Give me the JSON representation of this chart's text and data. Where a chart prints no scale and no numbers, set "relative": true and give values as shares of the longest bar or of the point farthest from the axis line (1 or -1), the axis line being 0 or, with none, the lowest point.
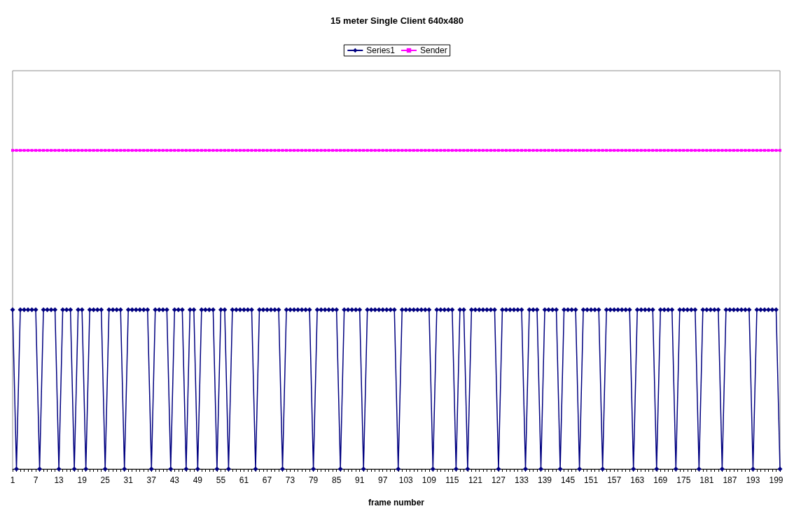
{
  "chart_data": {
    "type": "line",
    "title": "15 meter Single Client 640x480",
    "xlabel": "frame number",
    "relative": true,
    "legend": "top",
    "grid": false,
    "categories": [
      "1",
      null,
      null,
      null,
      null,
      null,
      "7",
      null,
      null,
      null,
      null,
      null,
      "13",
      null,
      null,
      null,
      null,
      null,
      "19",
      null,
      null,
      null,
      null,
      null,
      "25",
      null,
      null,
      null,
      null,
      null,
      "31",
      null,
      null,
      null,
      null,
      null,
      "37",
      null,
      null,
      null,
      null,
      null,
      "43",
      null,
      null,
      null,
      null,
      null,
      "49",
      null,
      null,
      null,
      null,
      null,
      "55",
      null,
      null,
      null,
      null,
      null,
      "61",
      null,
      null,
      null,
      null,
      null,
      "67",
      null,
      null,
      null,
      null,
      null,
      "73",
      null,
      null,
      null,
      null,
      null,
      "79",
      null,
      null,
      null,
      null,
      null,
      "85",
      null,
      null,
      null,
      null,
      null,
      "91",
      null,
      null,
      null,
      null,
      null,
      "97",
      null,
      null,
      null,
      null,
      null,
      "103",
      null,
      null,
      null,
      null,
      null,
      "109",
      null,
      null,
      null,
      null,
      null,
      "115",
      null,
      null,
      null,
      null,
      null,
      "121",
      null,
      null,
      null,
      null,
      null,
      "127",
      null,
      null,
      null,
      null,
      null,
      "133",
      null,
      null,
      null,
      null,
      null,
      "139",
      null,
      null,
      null,
      null,
      null,
      "145",
      null,
      null,
      null,
      null,
      null,
      "151",
      null,
      null,
      null,
      null,
      null,
      "157",
      null,
      null,
      null,
      null,
      null,
      "163",
      null,
      null,
      null,
      null,
      null,
      "169",
      null,
      null,
      null,
      null,
      null,
      "175",
      null,
      null,
      null,
      null,
      null,
      "181",
      null,
      null,
      null,
      null,
      null,
      "187",
      null,
      null,
      null,
      null,
      null,
      "193",
      null,
      null,
      null,
      null,
      null,
      "199",
      null
    ],
    "series": [
      {
        "name": "Series1",
        "color": "#000080",
        "marker": "diamond",
        "values": [
          0.5,
          0,
          0.5,
          0.5,
          0.5,
          0.5,
          0.5,
          0,
          0.5,
          0.5,
          0.5,
          0.5,
          0,
          0.5,
          0.5,
          0.5,
          0,
          0.5,
          0.5,
          0,
          0.5,
          0.5,
          0.5,
          0.5,
          0,
          0.5,
          0.5,
          0.5,
          0.5,
          0,
          0.5,
          0.5,
          0.5,
          0.5,
          0.5,
          0.5,
          0,
          0.5,
          0.5,
          0.5,
          0.5,
          0,
          0.5,
          0.5,
          0.5,
          0,
          0.5,
          0.5,
          0,
          0.5,
          0.5,
          0.5,
          0.5,
          0,
          0.5,
          0.5,
          0,
          0.5,
          0.5,
          0.5,
          0.5,
          0.5,
          0.5,
          0,
          0.5,
          0.5,
          0.5,
          0.5,
          0.5,
          0.5,
          0,
          0.5,
          0.5,
          0.5,
          0.5,
          0.5,
          0.5,
          0.5,
          0,
          0.5,
          0.5,
          0.5,
          0.5,
          0.5,
          0.5,
          0,
          0.5,
          0.5,
          0.5,
          0.5,
          0.5,
          0,
          0.5,
          0.5,
          0.5,
          0.5,
          0.5,
          0.5,
          0.5,
          0.5,
          0,
          0.5,
          0.5,
          0.5,
          0.5,
          0.5,
          0.5,
          0.5,
          0.5,
          0,
          0.5,
          0.5,
          0.5,
          0.5,
          0.5,
          0,
          0.5,
          0.5,
          0,
          0.5,
          0.5,
          0.5,
          0.5,
          0.5,
          0.5,
          0.5,
          0,
          0.5,
          0.5,
          0.5,
          0.5,
          0.5,
          0.5,
          0,
          0.5,
          0.5,
          0.5,
          0,
          0.5,
          0.5,
          0.5,
          0.5,
          0,
          0.5,
          0.5,
          0.5,
          0.5,
          0,
          0.5,
          0.5,
          0.5,
          0.5,
          0.5,
          0,
          0.5,
          0.5,
          0.5,
          0.5,
          0.5,
          0.5,
          0.5,
          0,
          0.5,
          0.5,
          0.5,
          0.5,
          0.5,
          0,
          0.5,
          0.5,
          0.5,
          0.5,
          0,
          0.5,
          0.5,
          0.5,
          0.5,
          0.5,
          0,
          0.5,
          0.5,
          0.5,
          0.5,
          0.5,
          0,
          0.5,
          0.5,
          0.5,
          0.5,
          0.5,
          0.5,
          0.5,
          0,
          0.5,
          0.5,
          0.5,
          0.5,
          0.5,
          0.5,
          0
        ]
      },
      {
        "name": "Sender",
        "color": "#ff00ff",
        "marker": "square",
        "values": [
          1,
          1,
          1,
          1,
          1,
          1,
          1,
          1,
          1,
          1,
          1,
          1,
          1,
          1,
          1,
          1,
          1,
          1,
          1,
          1,
          1,
          1,
          1,
          1,
          1,
          1,
          1,
          1,
          1,
          1,
          1,
          1,
          1,
          1,
          1,
          1,
          1,
          1,
          1,
          1,
          1,
          1,
          1,
          1,
          1,
          1,
          1,
          1,
          1,
          1,
          1,
          1,
          1,
          1,
          1,
          1,
          1,
          1,
          1,
          1,
          1,
          1,
          1,
          1,
          1,
          1,
          1,
          1,
          1,
          1,
          1,
          1,
          1,
          1,
          1,
          1,
          1,
          1,
          1,
          1,
          1,
          1,
          1,
          1,
          1,
          1,
          1,
          1,
          1,
          1,
          1,
          1,
          1,
          1,
          1,
          1,
          1,
          1,
          1,
          1,
          1,
          1,
          1,
          1,
          1,
          1,
          1,
          1,
          1,
          1,
          1,
          1,
          1,
          1,
          1,
          1,
          1,
          1,
          1,
          1,
          1,
          1,
          1,
          1,
          1,
          1,
          1,
          1,
          1,
          1,
          1,
          1,
          1,
          1,
          1,
          1,
          1,
          1,
          1,
          1,
          1,
          1,
          1,
          1,
          1,
          1,
          1,
          1,
          1,
          1,
          1,
          1,
          1,
          1,
          1,
          1,
          1,
          1,
          1,
          1,
          1,
          1,
          1,
          1,
          1,
          1,
          1,
          1,
          1,
          1,
          1,
          1,
          1,
          1,
          1,
          1,
          1,
          1,
          1,
          1,
          1,
          1,
          1,
          1,
          1,
          1,
          1,
          1,
          1,
          1,
          1,
          1,
          1,
          1,
          1,
          1,
          1,
          1,
          1,
          1
        ]
      }
    ]
  }
}
